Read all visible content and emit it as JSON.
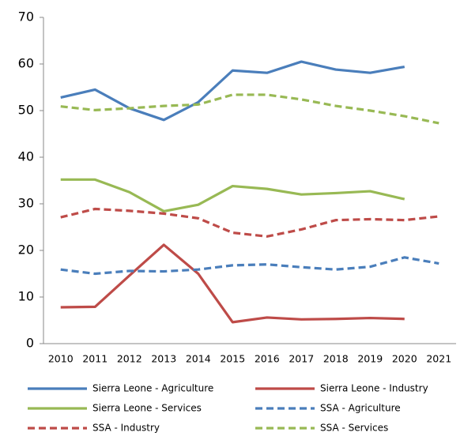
{
  "chart_data": {
    "type": "line",
    "categories": [
      "2010",
      "2011",
      "2012",
      "2013",
      "2014",
      "2015",
      "2016",
      "2017",
      "2018",
      "2019",
      "2020",
      "2021"
    ],
    "series": [
      {
        "name": "Sierra Leone - Agriculture",
        "color": "#4a7ebb",
        "dashed": false,
        "values": [
          52.8,
          54.5,
          50.5,
          48,
          51.8,
          58.6,
          58.1,
          60.5,
          58.8,
          58.1,
          59.4,
          null
        ]
      },
      {
        "name": "Sierra Leone - Industry",
        "color": "#be4b48",
        "dashed": false,
        "values": [
          7.8,
          7.9,
          14.6,
          21.2,
          15,
          4.6,
          5.6,
          5.2,
          5.3,
          5.5,
          5.3,
          null
        ]
      },
      {
        "name": "Sierra Leone - Services",
        "color": "#98b954",
        "dashed": false,
        "values": [
          35.2,
          35.2,
          32.5,
          28.4,
          29.8,
          33.8,
          33.2,
          32,
          32.3,
          32.7,
          31,
          null
        ]
      },
      {
        "name": "SSA - Agriculture",
        "color": "#4a7ebb",
        "dashed": true,
        "values": [
          15.9,
          15,
          15.6,
          15.5,
          15.9,
          16.8,
          17,
          16.4,
          15.9,
          16.5,
          18.5,
          17.2
        ]
      },
      {
        "name": "SSA - Industry",
        "color": "#be4b48",
        "dashed": true,
        "values": [
          27.1,
          28.9,
          28.5,
          27.9,
          26.9,
          23.8,
          23,
          24.5,
          26.5,
          26.7,
          26.5,
          27.3
        ]
      },
      {
        "name": "SSA - Services",
        "color": "#98b954",
        "dashed": true,
        "values": [
          50.9,
          50.1,
          50.5,
          51,
          51.3,
          53.4,
          53.4,
          52.4,
          51,
          50,
          48.8,
          47.3
        ]
      }
    ],
    "ylim": [
      0,
      70
    ],
    "yticks": [
      0,
      10,
      20,
      30,
      40,
      50,
      60,
      70
    ],
    "grid": false,
    "legend": "bottom"
  }
}
